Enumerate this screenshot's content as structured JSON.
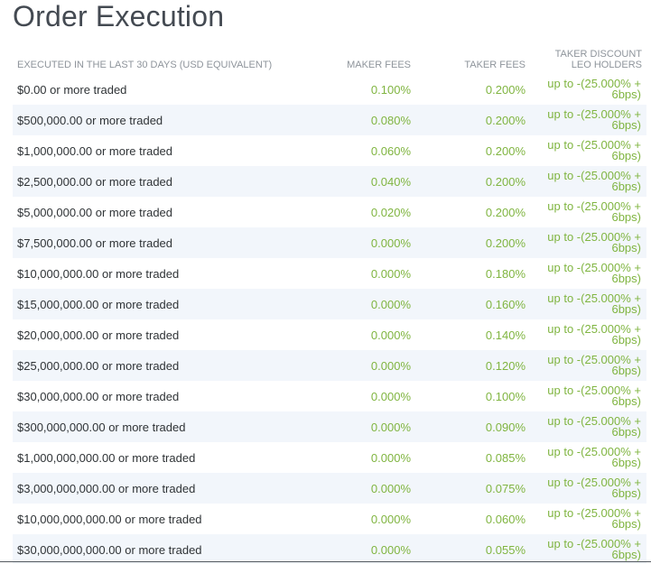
{
  "page": {
    "title": "Order Execution"
  },
  "table": {
    "headers": {
      "tier": "EXECUTED IN THE LAST 30 DAYS (USD EQUIVALENT)",
      "maker": "MAKER FEES",
      "taker": "TAKER FEES",
      "discount": "TAKER DISCOUNT LEO HOLDERS"
    },
    "rows": [
      {
        "tier": "$0.00 or more traded",
        "maker": "0.100%",
        "taker": "0.200%",
        "discount": "up to -(25.000% + 6bps)"
      },
      {
        "tier": "$500,000.00 or more traded",
        "maker": "0.080%",
        "taker": "0.200%",
        "discount": "up to -(25.000% + 6bps)"
      },
      {
        "tier": "$1,000,000.00 or more traded",
        "maker": "0.060%",
        "taker": "0.200%",
        "discount": "up to -(25.000% + 6bps)"
      },
      {
        "tier": "$2,500,000.00 or more traded",
        "maker": "0.040%",
        "taker": "0.200%",
        "discount": "up to -(25.000% + 6bps)"
      },
      {
        "tier": "$5,000,000.00 or more traded",
        "maker": "0.020%",
        "taker": "0.200%",
        "discount": "up to -(25.000% + 6bps)"
      },
      {
        "tier": "$7,500,000.00 or more traded",
        "maker": "0.000%",
        "taker": "0.200%",
        "discount": "up to -(25.000% + 6bps)"
      },
      {
        "tier": "$10,000,000.00 or more traded",
        "maker": "0.000%",
        "taker": "0.180%",
        "discount": "up to -(25.000% + 6bps)"
      },
      {
        "tier": "$15,000,000.00 or more traded",
        "maker": "0.000%",
        "taker": "0.160%",
        "discount": "up to -(25.000% + 6bps)"
      },
      {
        "tier": "$20,000,000.00 or more traded",
        "maker": "0.000%",
        "taker": "0.140%",
        "discount": "up to -(25.000% + 6bps)"
      },
      {
        "tier": "$25,000,000.00 or more traded",
        "maker": "0.000%",
        "taker": "0.120%",
        "discount": "up to -(25.000% + 6bps)"
      },
      {
        "tier": "$30,000,000.00 or more traded",
        "maker": "0.000%",
        "taker": "0.100%",
        "discount": "up to -(25.000% + 6bps)"
      },
      {
        "tier": "$300,000,000.00 or more traded",
        "maker": "0.000%",
        "taker": "0.090%",
        "discount": "up to -(25.000% + 6bps)"
      },
      {
        "tier": "$1,000,000,000.00 or more traded",
        "maker": "0.000%",
        "taker": "0.085%",
        "discount": "up to -(25.000% + 6bps)"
      },
      {
        "tier": "$3,000,000,000.00 or more traded",
        "maker": "0.000%",
        "taker": "0.075%",
        "discount": "up to -(25.000% + 6bps)"
      },
      {
        "tier": "$10,000,000,000.00 or more traded",
        "maker": "0.000%",
        "taker": "0.060%",
        "discount": "up to -(25.000% + 6bps)"
      },
      {
        "tier": "$30,000,000,000.00 or more traded",
        "maker": "0.000%",
        "taker": "0.055%",
        "discount": "up to -(25.000% + 6bps)"
      }
    ]
  },
  "colors": {
    "fee_green": "#80b541",
    "header_gray": "#8e949b",
    "stripe": "#f2f6fb"
  }
}
